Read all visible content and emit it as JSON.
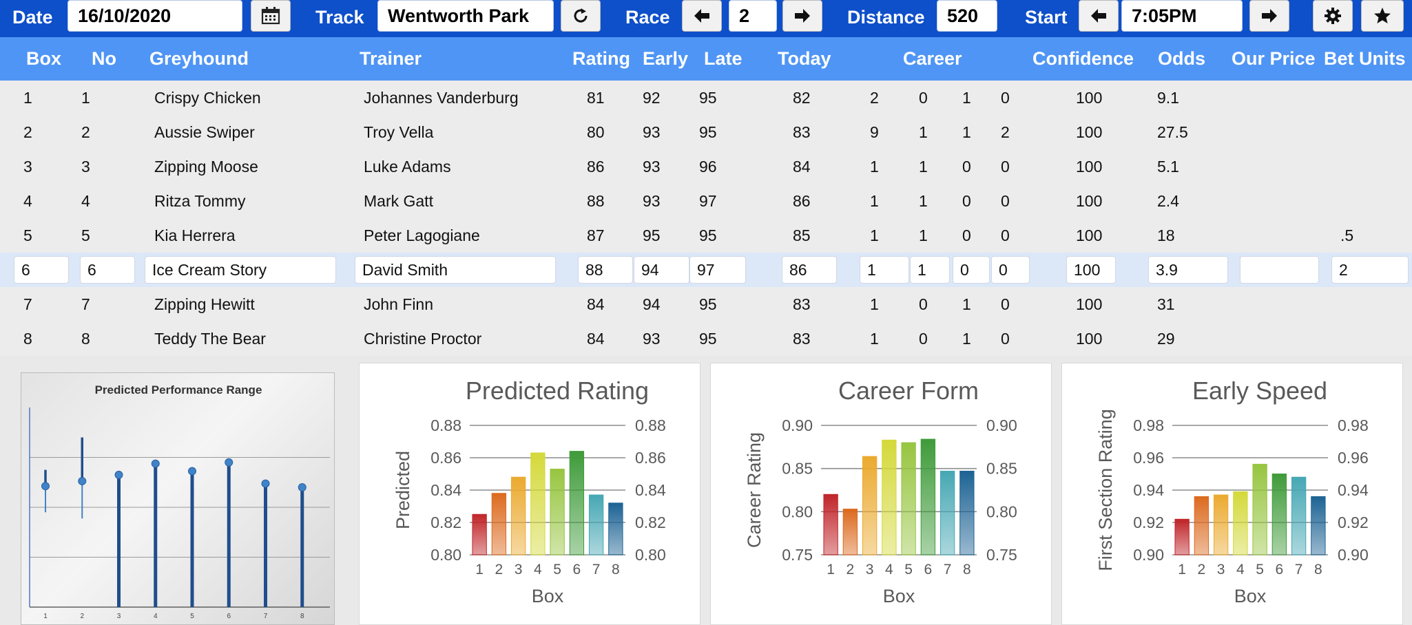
{
  "toolbar": {
    "date_label": "Date",
    "date_value": "16/10/2020",
    "track_label": "Track",
    "track_value": "Wentworth Park",
    "race_label": "Race",
    "race_value": "2",
    "distance_label": "Distance",
    "distance_value": "520",
    "start_label": "Start",
    "start_value": "7:05PM"
  },
  "columns": {
    "box": "Box",
    "no": "No",
    "greyhound": "Greyhound",
    "trainer": "Trainer",
    "rating": "Rating",
    "early": "Early",
    "late": "Late",
    "today": "Today",
    "career": "Career",
    "confidence": "Confidence",
    "odds": "Odds",
    "our_price": "Our Price",
    "bet_units": "Bet Units"
  },
  "rows": [
    {
      "box": "1",
      "no": "1",
      "greyhound": "Crispy Chicken",
      "trainer": "Johannes Vanderburg",
      "rating": "81",
      "early": "92",
      "late": "95",
      "today": "82",
      "c1": "2",
      "c2": "0",
      "c3": "1",
      "c4": "0",
      "confidence": "100",
      "odds": "9.1",
      "our_price": "",
      "bet_units": ""
    },
    {
      "box": "2",
      "no": "2",
      "greyhound": "Aussie Swiper",
      "trainer": "Troy Vella",
      "rating": "80",
      "early": "93",
      "late": "95",
      "today": "83",
      "c1": "9",
      "c2": "1",
      "c3": "1",
      "c4": "2",
      "confidence": "100",
      "odds": "27.5",
      "our_price": "",
      "bet_units": ""
    },
    {
      "box": "3",
      "no": "3",
      "greyhound": "Zipping Moose",
      "trainer": "Luke Adams",
      "rating": "86",
      "early": "93",
      "late": "96",
      "today": "84",
      "c1": "1",
      "c2": "1",
      "c3": "0",
      "c4": "0",
      "confidence": "100",
      "odds": "5.1",
      "our_price": "",
      "bet_units": ""
    },
    {
      "box": "4",
      "no": "4",
      "greyhound": "Ritza Tommy",
      "trainer": "Mark Gatt",
      "rating": "88",
      "early": "93",
      "late": "97",
      "today": "86",
      "c1": "1",
      "c2": "1",
      "c3": "0",
      "c4": "0",
      "confidence": "100",
      "odds": "2.4",
      "our_price": "",
      "bet_units": ""
    },
    {
      "box": "5",
      "no": "5",
      "greyhound": "Kia Herrera",
      "trainer": "Peter Lagogiane",
      "rating": "87",
      "early": "95",
      "late": "95",
      "today": "85",
      "c1": "1",
      "c2": "1",
      "c3": "0",
      "c4": "0",
      "confidence": "100",
      "odds": "18",
      "our_price": "",
      "bet_units": ".5"
    },
    {
      "box": "6",
      "no": "6",
      "greyhound": "Ice Cream Story",
      "trainer": "David Smith",
      "rating": "88",
      "early": "94",
      "late": "97",
      "today": "86",
      "c1": "1",
      "c2": "1",
      "c3": "0",
      "c4": "0",
      "confidence": "100",
      "odds": "3.9",
      "our_price": "",
      "bet_units": "2"
    },
    {
      "box": "7",
      "no": "7",
      "greyhound": "Zipping Hewitt",
      "trainer": "John Finn",
      "rating": "84",
      "early": "94",
      "late": "95",
      "today": "83",
      "c1": "1",
      "c2": "0",
      "c3": "1",
      "c4": "0",
      "confidence": "100",
      "odds": "31",
      "our_price": "",
      "bet_units": ""
    },
    {
      "box": "8",
      "no": "8",
      "greyhound": "Teddy The Bear",
      "trainer": "Christine Proctor",
      "rating": "84",
      "early": "93",
      "late": "95",
      "today": "83",
      "c1": "1",
      "c2": "0",
      "c3": "1",
      "c4": "0",
      "confidence": "100",
      "odds": "29",
      "our_price": "",
      "bet_units": ""
    }
  ],
  "selected_row": 5,
  "colors": {
    "toolbar": "#0e4fca",
    "header": "#4f95f5",
    "selected_row": "#dce8f7",
    "range_line": "#1f4e8c",
    "range_point": "#3f83c8",
    "bars": [
      "#c0252a",
      "#dc6a1f",
      "#ebaa2f",
      "#d4d93a",
      "#97c540",
      "#3f9b3a",
      "#46a7b4",
      "#1d6394"
    ]
  },
  "chart_data": [
    {
      "type": "scatter",
      "title": "Predicted Performance Range",
      "categories": [
        "1",
        "2",
        "3",
        "4",
        "5",
        "6",
        "7",
        "8"
      ],
      "ylim": [
        0.76,
        0.92
      ],
      "grid": true,
      "series": [
        {
          "values": [
            0.857,
            0.861,
            0.866,
            0.875,
            0.869,
            0.876,
            0.859,
            0.856
          ]
        }
      ],
      "error_high": [
        0.87,
        0.896,
        null,
        null,
        null,
        null,
        null,
        null
      ],
      "error_low": [
        0.836,
        0.831,
        null,
        null,
        null,
        null,
        null,
        null
      ],
      "drop_lines": [
        false,
        false,
        true,
        true,
        true,
        true,
        true,
        true
      ]
    },
    {
      "type": "bar",
      "title": "Predicted Rating",
      "xlabel": "Box",
      "ylabel": "Predicted",
      "categories": [
        "1",
        "2",
        "3",
        "4",
        "5",
        "6",
        "7",
        "8"
      ],
      "values": [
        0.825,
        0.838,
        0.848,
        0.863,
        0.853,
        0.864,
        0.837,
        0.832
      ],
      "ylim": [
        0.8,
        0.88
      ],
      "ticks": [
        "0.80",
        "0.82",
        "0.84",
        "0.86",
        "0.88"
      ],
      "grid": true
    },
    {
      "type": "bar",
      "title": "Career Form",
      "xlabel": "Box",
      "ylabel": "Career Rating",
      "categories": [
        "1",
        "2",
        "3",
        "4",
        "5",
        "6",
        "7",
        "8"
      ],
      "values": [
        0.82,
        0.803,
        0.864,
        0.883,
        0.88,
        0.884,
        0.847,
        0.847
      ],
      "ylim": [
        0.75,
        0.9
      ],
      "ticks": [
        "0.75",
        "0.80",
        "0.85",
        "0.90"
      ],
      "grid": true
    },
    {
      "type": "bar",
      "title": "Early Speed",
      "xlabel": "Box",
      "ylabel": "First Section Rating",
      "categories": [
        "1",
        "2",
        "3",
        "4",
        "5",
        "6",
        "7",
        "8"
      ],
      "values": [
        0.922,
        0.936,
        0.937,
        0.939,
        0.956,
        0.95,
        0.948,
        0.936
      ],
      "ylim": [
        0.9,
        0.98
      ],
      "ticks": [
        "0.90",
        "0.92",
        "0.94",
        "0.96",
        "0.98"
      ],
      "grid": true
    }
  ]
}
